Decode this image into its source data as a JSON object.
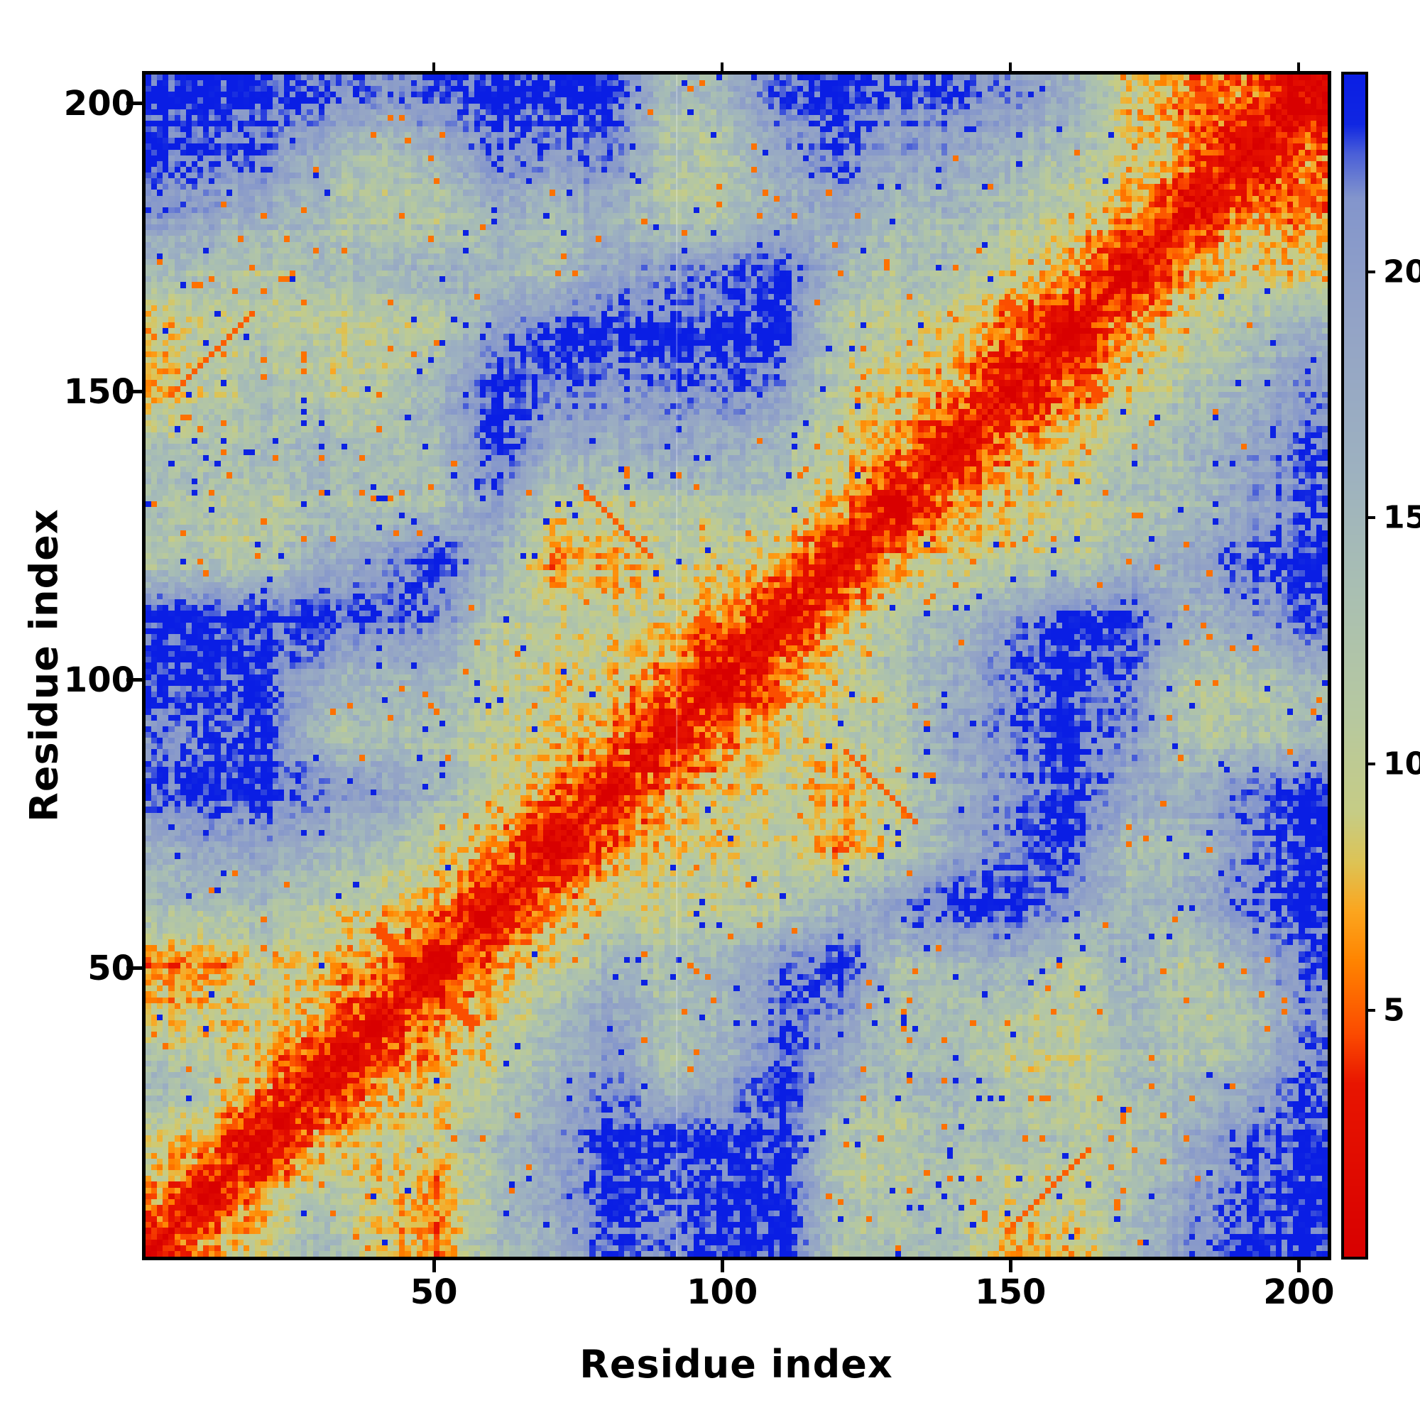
{
  "figure": {
    "background": "#ffffff",
    "frame_color": "#000000"
  },
  "chart_data": {
    "type": "heatmap",
    "title": "",
    "xlabel": "Residue index",
    "ylabel": "Residue index",
    "x_range": [
      1,
      205
    ],
    "y_range": [
      1,
      205
    ],
    "n_residues": 205,
    "x_ticks": [
      50,
      100,
      150,
      200
    ],
    "y_ticks": [
      50,
      100,
      150,
      200
    ],
    "colorbar_ticks": [
      5,
      10,
      15,
      20
    ],
    "value_range": [
      0,
      24
    ],
    "legend_position": "right-colorbar",
    "grid": false,
    "colormap_stops": [
      [
        0,
        "#d80000"
      ],
      [
        3.5,
        "#e81500"
      ],
      [
        4.5,
        "#fb4a00"
      ],
      [
        6,
        "#ff8400"
      ],
      [
        7,
        "#fca51e"
      ],
      [
        8,
        "#ddc355"
      ],
      [
        9,
        "#c6cc85"
      ],
      [
        11,
        "#b6c8a0"
      ],
      [
        13.5,
        "#a9bfb2"
      ],
      [
        16,
        "#9db1c0"
      ],
      [
        19,
        "#93a3c6"
      ],
      [
        21.5,
        "#8395cc"
      ],
      [
        22.4,
        "#4a5fd8"
      ],
      [
        23,
        "#1026e2"
      ],
      [
        24,
        "#0a1ee4"
      ]
    ],
    "coarse_grid": {
      "description": "approximate residue-residue distance matrix sampled every 10 residues (symmetric, red diagonal = 0)",
      "start_residue": 1,
      "residue_step": 10,
      "matrix": [
        [
          0,
          7,
          10,
          15,
          9,
          6,
          14,
          16,
          22,
          20,
          24,
          24,
          12,
          14,
          13,
          7,
          7,
          14,
          20,
          24,
          24
        ],
        [
          7,
          0,
          7,
          12,
          9,
          6,
          13,
          18,
          24,
          21,
          24,
          24,
          12,
          12,
          13,
          10,
          10,
          13,
          18,
          22,
          24
        ],
        [
          10,
          7,
          0,
          7,
          10,
          11,
          14,
          19,
          24,
          24,
          24,
          24,
          12,
          12,
          14,
          14,
          12,
          12,
          17,
          22,
          24
        ],
        [
          15,
          12,
          7,
          0,
          7,
          8,
          11,
          16,
          21,
          13,
          18,
          24,
          17,
          14,
          16,
          11,
          11,
          14,
          14,
          16,
          22
        ],
        [
          9,
          9,
          10,
          7,
          0,
          7,
          9,
          14,
          19,
          13,
          15,
          22,
          19,
          13,
          13,
          11,
          10,
          15,
          12,
          12,
          20
        ],
        [
          6,
          6,
          11,
          8,
          7,
          0,
          7,
          10,
          15,
          13,
          16,
          21,
          24,
          13,
          15,
          16,
          11,
          16,
          12,
          15,
          22
        ],
        [
          14,
          13,
          14,
          11,
          9,
          7,
          0,
          7,
          10,
          10,
          11,
          12,
          16,
          20,
          24,
          24,
          19,
          15,
          16,
          22,
          24
        ],
        [
          16,
          18,
          19,
          16,
          14,
          10,
          7,
          0,
          6,
          9,
          10,
          11,
          7,
          11,
          18,
          22,
          24,
          14,
          15,
          20,
          24
        ],
        [
          22,
          24,
          24,
          21,
          19,
          15,
          10,
          6,
          0,
          6,
          9,
          10,
          7,
          11,
          16,
          20,
          24,
          18,
          16,
          21,
          24
        ],
        [
          20,
          21,
          24,
          13,
          13,
          13,
          10,
          9,
          6,
          0,
          6,
          9,
          11,
          12,
          18,
          21,
          24,
          20,
          12,
          12,
          14
        ],
        [
          24,
          24,
          24,
          18,
          15,
          16,
          11,
          10,
          9,
          6,
          0,
          6,
          10,
          13,
          17,
          22,
          24,
          22,
          12,
          12,
          15
        ],
        [
          24,
          24,
          24,
          24,
          22,
          21,
          12,
          11,
          10,
          9,
          6,
          0,
          7,
          12,
          15,
          19,
          24,
          24,
          16,
          18,
          22
        ],
        [
          12,
          12,
          12,
          17,
          19,
          24,
          16,
          7,
          7,
          11,
          10,
          7,
          0,
          7,
          10,
          11,
          11,
          15,
          18,
          22,
          24
        ],
        [
          14,
          12,
          12,
          14,
          13,
          13,
          20,
          11,
          11,
          12,
          13,
          12,
          7,
          0,
          7,
          9,
          11,
          13,
          14,
          18,
          22
        ],
        [
          13,
          13,
          14,
          16,
          13,
          15,
          24,
          18,
          16,
          18,
          17,
          15,
          10,
          7,
          0,
          7,
          9,
          13,
          15,
          18,
          22
        ],
        [
          7,
          10,
          14,
          11,
          11,
          16,
          24,
          22,
          20,
          21,
          22,
          19,
          11,
          9,
          7,
          0,
          5,
          10,
          13,
          15,
          20
        ],
        [
          7,
          10,
          12,
          11,
          10,
          11,
          19,
          24,
          24,
          24,
          24,
          24,
          11,
          11,
          9,
          5,
          0,
          7,
          10,
          13,
          16
        ],
        [
          14,
          13,
          12,
          14,
          15,
          16,
          15,
          14,
          18,
          20,
          22,
          24,
          15,
          13,
          13,
          10,
          7,
          0,
          7,
          10,
          9
        ],
        [
          20,
          18,
          17,
          14,
          12,
          12,
          16,
          15,
          16,
          12,
          12,
          16,
          18,
          14,
          15,
          13,
          10,
          7,
          0,
          7,
          6
        ],
        [
          24,
          22,
          22,
          16,
          12,
          15,
          22,
          20,
          21,
          12,
          12,
          18,
          22,
          18,
          18,
          15,
          13,
          10,
          7,
          0,
          6
        ],
        [
          24,
          24,
          24,
          22,
          20,
          22,
          24,
          24,
          24,
          14,
          15,
          22,
          24,
          22,
          22,
          20,
          16,
          9,
          6,
          6,
          0
        ]
      ]
    },
    "features": [
      {
        "type": "hairpin",
        "center": 48,
        "half": 9
      },
      {
        "type": "hairpin",
        "center": 103,
        "half": 8
      },
      {
        "type": "hairpin",
        "center": 157,
        "half": 9
      },
      {
        "type": "hairpin",
        "center": 192,
        "half": 12
      },
      {
        "type": "parallel",
        "i0": 4,
        "j0": 149,
        "len": 14
      },
      {
        "type": "antiparallel",
        "i0": 75,
        "j0": 133,
        "len": 12
      }
    ],
    "gap_line_residue": 92
  }
}
